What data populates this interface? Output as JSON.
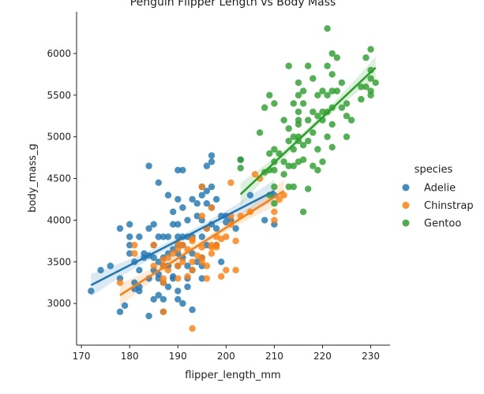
{
  "chart_data": {
    "type": "scatter",
    "title": "Penguin Flipper Length vs Body Mass",
    "xlabel": "flipper_length_mm",
    "ylabel": "body_mass_g",
    "xlim": [
      169,
      234
    ],
    "ylim": [
      2500,
      6500
    ],
    "xticks": [
      170,
      180,
      190,
      200,
      210,
      220,
      230
    ],
    "yticks": [
      3000,
      3500,
      4000,
      4500,
      5000,
      5500,
      6000
    ],
    "grid": false,
    "legend": {
      "title": "species",
      "placement": "right"
    },
    "series": [
      {
        "name": "Adelie",
        "color": "#1f77b4",
        "regression": {
          "x": [
            172,
            210
          ],
          "y": [
            3220,
            4350
          ]
        },
        "points": [
          [
            172,
            3150
          ],
          [
            174,
            3400
          ],
          [
            176,
            3450
          ],
          [
            178,
            2900
          ],
          [
            178,
            3900
          ],
          [
            178,
            3300
          ],
          [
            179,
            2975
          ],
          [
            180,
            3950
          ],
          [
            180,
            3700
          ],
          [
            180,
            3800
          ],
          [
            180,
            3600
          ],
          [
            181,
            3250
          ],
          [
            181,
            3500
          ],
          [
            181,
            3175
          ],
          [
            182,
            3400
          ],
          [
            182,
            3200
          ],
          [
            182,
            3800
          ],
          [
            182,
            3150
          ],
          [
            183,
            3600
          ],
          [
            183,
            3550
          ],
          [
            184,
            3900
          ],
          [
            184,
            3300
          ],
          [
            184,
            3575
          ],
          [
            184,
            4650
          ],
          [
            184,
            2850
          ],
          [
            185,
            3950
          ],
          [
            185,
            3700
          ],
          [
            185,
            3400
          ],
          [
            185,
            3050
          ],
          [
            185,
            3550
          ],
          [
            186,
            3800
          ],
          [
            186,
            3350
          ],
          [
            186,
            3100
          ],
          [
            186,
            3500
          ],
          [
            186,
            4450
          ],
          [
            186,
            3300
          ],
          [
            187,
            3800
          ],
          [
            187,
            3550
          ],
          [
            187,
            3250
          ],
          [
            187,
            3050
          ],
          [
            187,
            3450
          ],
          [
            187,
            2900
          ],
          [
            188,
            3800
          ],
          [
            188,
            3600
          ],
          [
            188,
            3450
          ],
          [
            188,
            3200
          ],
          [
            188,
            4300
          ],
          [
            189,
            3950
          ],
          [
            189,
            3650
          ],
          [
            189,
            3325
          ],
          [
            189,
            3300
          ],
          [
            189,
            4100
          ],
          [
            190,
            3950
          ],
          [
            190,
            3800
          ],
          [
            190,
            3700
          ],
          [
            190,
            3450
          ],
          [
            190,
            3600
          ],
          [
            190,
            4250
          ],
          [
            190,
            3150
          ],
          [
            190,
            4600
          ],
          [
            190,
            3050
          ],
          [
            191,
            3800
          ],
          [
            191,
            3700
          ],
          [
            191,
            3550
          ],
          [
            191,
            3000
          ],
          [
            191,
            4600
          ],
          [
            191,
            4150
          ],
          [
            192,
            4000
          ],
          [
            192,
            3800
          ],
          [
            192,
            3450
          ],
          [
            192,
            3300
          ],
          [
            192,
            3200
          ],
          [
            193,
            4250
          ],
          [
            193,
            3800
          ],
          [
            193,
            3600
          ],
          [
            193,
            3400
          ],
          [
            193,
            2925
          ],
          [
            194,
            4200
          ],
          [
            194,
            3500
          ],
          [
            194,
            4050
          ],
          [
            195,
            4300
          ],
          [
            195,
            4000
          ],
          [
            195,
            3800
          ],
          [
            195,
            3550
          ],
          [
            195,
            3450
          ],
          [
            195,
            3300
          ],
          [
            195,
            4400
          ],
          [
            196,
            4650
          ],
          [
            196,
            4200
          ],
          [
            196,
            3900
          ],
          [
            196,
            3700
          ],
          [
            196,
            4350
          ],
          [
            197,
            4700
          ],
          [
            197,
            4400
          ],
          [
            197,
            4150
          ],
          [
            197,
            3950
          ],
          [
            197,
            4775
          ],
          [
            198,
            4250
          ],
          [
            198,
            3900
          ],
          [
            198,
            3700
          ],
          [
            199,
            4050
          ],
          [
            199,
            3500
          ],
          [
            200,
            4050
          ],
          [
            200,
            3975
          ],
          [
            201,
            4000
          ],
          [
            202,
            3900
          ],
          [
            203,
            4725
          ],
          [
            205,
            4300
          ],
          [
            208,
            4000
          ],
          [
            210,
            4300
          ],
          [
            210,
            3950
          ]
        ]
      },
      {
        "name": "Chinstrap",
        "color": "#ff7f0e",
        "regression": {
          "x": [
            178,
            212
          ],
          "y": [
            3100,
            4350
          ]
        },
        "points": [
          [
            178,
            3250
          ],
          [
            181,
            3700
          ],
          [
            181,
            3600
          ],
          [
            185,
            3450
          ],
          [
            185,
            3700
          ],
          [
            187,
            3250
          ],
          [
            187,
            2900
          ],
          [
            187,
            3450
          ],
          [
            187,
            3300
          ],
          [
            187,
            3525
          ],
          [
            188,
            3550
          ],
          [
            188,
            3400
          ],
          [
            189,
            3600
          ],
          [
            190,
            3650
          ],
          [
            190,
            3450
          ],
          [
            190,
            3725
          ],
          [
            190,
            3300
          ],
          [
            191,
            3500
          ],
          [
            191,
            3700
          ],
          [
            192,
            3650
          ],
          [
            192,
            3325
          ],
          [
            193,
            3750
          ],
          [
            193,
            3400
          ],
          [
            193,
            3500
          ],
          [
            193,
            3775
          ],
          [
            193,
            2700
          ],
          [
            194,
            3575
          ],
          [
            195,
            4400
          ],
          [
            195,
            3500
          ],
          [
            195,
            3675
          ],
          [
            195,
            4050
          ],
          [
            195,
            3550
          ],
          [
            196,
            3900
          ],
          [
            196,
            3450
          ],
          [
            196,
            3300
          ],
          [
            197,
            3675
          ],
          [
            197,
            3600
          ],
          [
            197,
            4150
          ],
          [
            197,
            3700
          ],
          [
            198,
            3700
          ],
          [
            198,
            3800
          ],
          [
            198,
            3675
          ],
          [
            199,
            3775
          ],
          [
            199,
            3325
          ],
          [
            200,
            3800
          ],
          [
            200,
            3400
          ],
          [
            201,
            4050
          ],
          [
            201,
            3950
          ],
          [
            201,
            4450
          ],
          [
            202,
            3750
          ],
          [
            202,
            3400
          ],
          [
            203,
            4050
          ],
          [
            205,
            4100
          ],
          [
            206,
            4550
          ],
          [
            207,
            4500
          ],
          [
            210,
            4000
          ],
          [
            210,
            4100
          ],
          [
            211,
            4250
          ],
          [
            212,
            4300
          ]
        ]
      },
      {
        "name": "Gentoo",
        "color": "#2ca02c",
        "regression": {
          "x": [
            203,
            231
          ],
          "y": [
            4310,
            5830
          ]
        },
        "points": [
          [
            203,
            4625
          ],
          [
            203,
            4725
          ],
          [
            207,
            5050
          ],
          [
            208,
            5350
          ],
          [
            208,
            4575
          ],
          [
            209,
            4600
          ],
          [
            209,
            5500
          ],
          [
            209,
            4800
          ],
          [
            209,
            4300
          ],
          [
            210,
            5400
          ],
          [
            210,
            4700
          ],
          [
            210,
            4850
          ],
          [
            210,
            4600
          ],
          [
            210,
            4400
          ],
          [
            210,
            4200
          ],
          [
            211,
            4800
          ],
          [
            212,
            5200
          ],
          [
            212,
            4700
          ],
          [
            212,
            4550
          ],
          [
            213,
            5850
          ],
          [
            213,
            5100
          ],
          [
            213,
            4950
          ],
          [
            213,
            4650
          ],
          [
            213,
            4400
          ],
          [
            214,
            5400
          ],
          [
            214,
            5000
          ],
          [
            214,
            4850
          ],
          [
            214,
            4650
          ],
          [
            214,
            4400
          ],
          [
            215,
            5650
          ],
          [
            215,
            5500
          ],
          [
            215,
            5000
          ],
          [
            215,
            5150
          ],
          [
            215,
            4950
          ],
          [
            215,
            4700
          ],
          [
            215,
            5300
          ],
          [
            215,
            5200
          ],
          [
            216,
            5550
          ],
          [
            216,
            5400
          ],
          [
            216,
            4900
          ],
          [
            216,
            4725
          ],
          [
            216,
            4100
          ],
          [
            217,
            5850
          ],
          [
            217,
            5200
          ],
          [
            217,
            4950
          ],
          [
            217,
            4375
          ],
          [
            218,
            5700
          ],
          [
            218,
            5300
          ],
          [
            218,
            4650
          ],
          [
            218,
            5050
          ],
          [
            219,
            5500
          ],
          [
            219,
            5250
          ],
          [
            219,
            4850
          ],
          [
            219,
            4600
          ],
          [
            220,
            5550
          ],
          [
            220,
            5300
          ],
          [
            220,
            5200
          ],
          [
            220,
            4700
          ],
          [
            221,
            5850
          ],
          [
            221,
            5500
          ],
          [
            221,
            5300
          ],
          [
            221,
            5000
          ],
          [
            221,
            6300
          ],
          [
            222,
            6000
          ],
          [
            222,
            5750
          ],
          [
            222,
            5550
          ],
          [
            222,
            5350
          ],
          [
            222,
            5150
          ],
          [
            222,
            4875
          ],
          [
            223,
            5950
          ],
          [
            223,
            5550
          ],
          [
            224,
            5650
          ],
          [
            224,
            5350
          ],
          [
            225,
            5400
          ],
          [
            225,
            5250
          ],
          [
            225,
            5000
          ],
          [
            226,
            5200
          ],
          [
            228,
            5600
          ],
          [
            228,
            5450
          ],
          [
            229,
            5950
          ],
          [
            229,
            5600
          ],
          [
            230,
            6050
          ],
          [
            230,
            5800
          ],
          [
            230,
            5550
          ],
          [
            230,
            5500
          ],
          [
            230,
            5700
          ],
          [
            231,
            5650
          ]
        ]
      }
    ]
  }
}
